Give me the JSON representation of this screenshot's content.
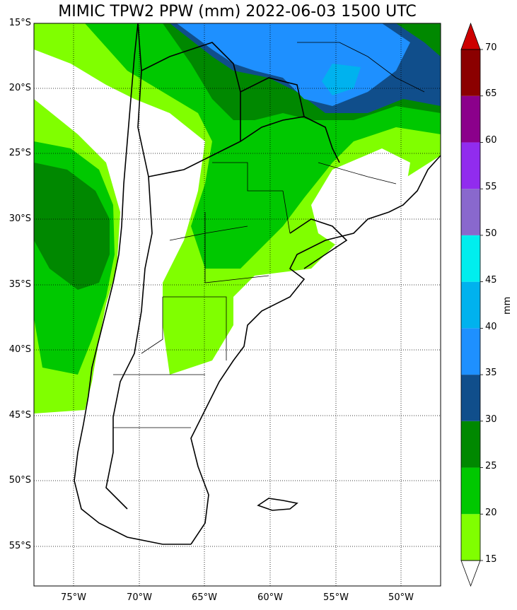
{
  "title": "MIMIC TPW2 PPW (mm) 2022-06-03 1500 UTC",
  "lat_labels": [
    "15°S",
    "20°S",
    "25°S",
    "30°S",
    "35°S",
    "40°S",
    "45°S",
    "50°S",
    "55°S"
  ],
  "lon_labels": [
    "75°W",
    "70°W",
    "65°W",
    "60°W",
    "55°W",
    "50°W"
  ],
  "colorbar": {
    "unit": "mm",
    "ticks": [
      "15",
      "20",
      "25",
      "30",
      "35",
      "40",
      "45",
      "50",
      "55",
      "60",
      "65",
      "70"
    ],
    "colors": [
      "#80ff00",
      "#00c800",
      "#008800",
      "#104e8b",
      "#1e90ff",
      "#00b2ee",
      "#00eeee",
      "#8968cd",
      "#912cee",
      "#8b008b",
      "#8b0000"
    ],
    "over_color": "#cd0000",
    "under_color": "#ffffff"
  },
  "map": {
    "extent_lon": [
      -78,
      -47
    ],
    "extent_lat": [
      -58,
      -15
    ],
    "gridlines": "dotted"
  }
}
